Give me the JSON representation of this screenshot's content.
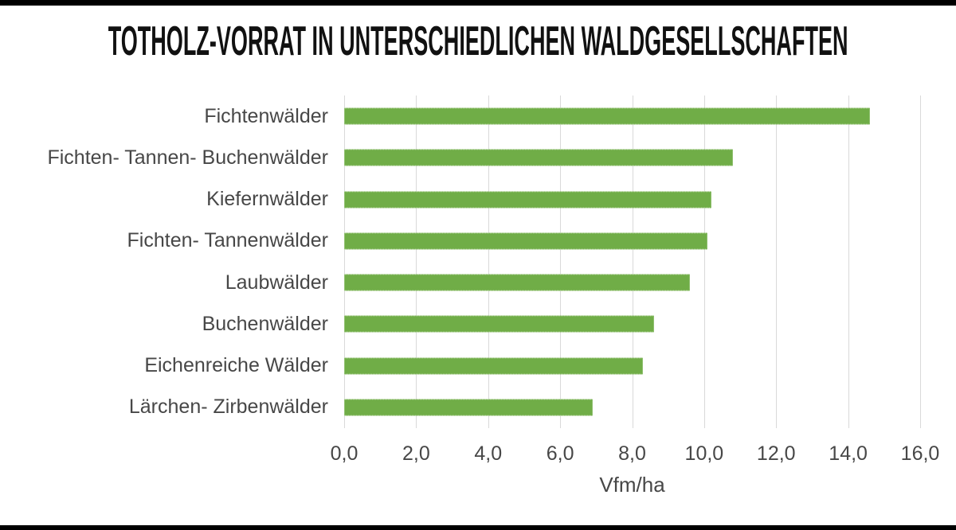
{
  "chart_data": {
    "type": "bar",
    "orientation": "horizontal",
    "title": "TOTHOLZ-VORRAT IN UNTERSCHIEDLICHEN WALDGESELLSCHAFTEN",
    "categories": [
      "Fichtenwälder",
      "Fichten- Tannen- Buchenwälder",
      "Kiefernwälder",
      "Fichten- Tannenwälder",
      "Laubwälder",
      "Buchenwälder",
      "Eichenreiche Wälder",
      "Lärchen- Zirbenwälder"
    ],
    "values": [
      14.6,
      10.8,
      10.2,
      10.1,
      9.6,
      8.6,
      8.3,
      6.9
    ],
    "xlabel": "Vfm/ha",
    "ylabel": "",
    "xlim": [
      0,
      16
    ],
    "xticks": {
      "values": [
        0,
        2,
        4,
        6,
        8,
        10,
        12,
        14,
        16
      ],
      "labels": [
        "0,0",
        "2,0",
        "4,0",
        "6,0",
        "8,0",
        "10,0",
        "12,0",
        "14,0",
        "16,0"
      ]
    },
    "grid": "vertical-only",
    "legend_position": "none",
    "colors": {
      "bar": "#70AD47",
      "gridline": "#D9D9D9",
      "axis_text": "#474747",
      "title_text": "#111111"
    }
  }
}
